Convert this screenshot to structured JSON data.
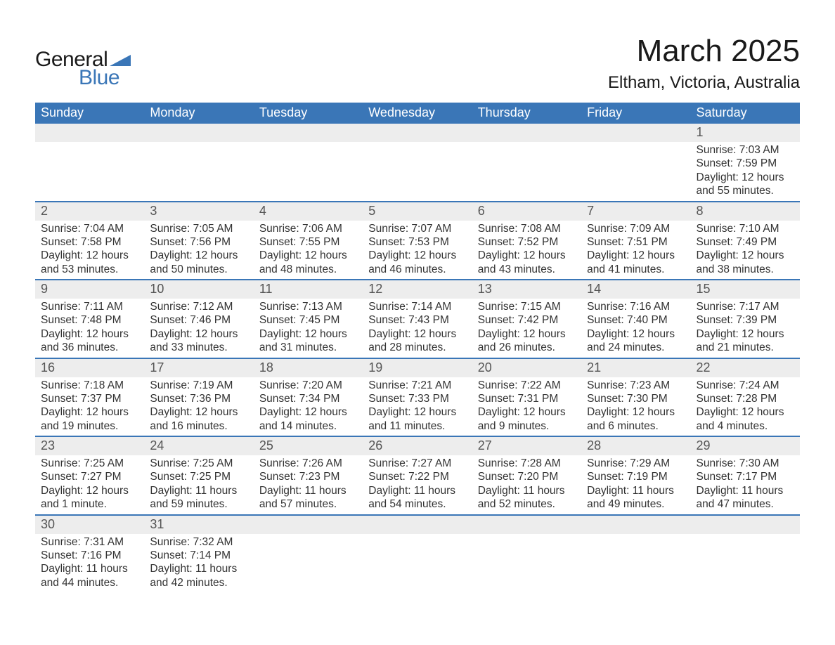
{
  "logo": {
    "text1": "General",
    "text2": "Blue",
    "triangle_color": "#3a76b7"
  },
  "title": "March 2025",
  "location": "Eltham, Victoria, Australia",
  "colors": {
    "header_bg": "#3a76b7",
    "header_text": "#ffffff",
    "daynum_bg": "#ededed",
    "row_divider": "#3a76b7",
    "body_bg": "#ffffff",
    "text": "#333333"
  },
  "weekdays": [
    "Sunday",
    "Monday",
    "Tuesday",
    "Wednesday",
    "Thursday",
    "Friday",
    "Saturday"
  ],
  "weeks": [
    [
      {
        "day": "",
        "sunrise": "",
        "sunset": "",
        "daylight": ""
      },
      {
        "day": "",
        "sunrise": "",
        "sunset": "",
        "daylight": ""
      },
      {
        "day": "",
        "sunrise": "",
        "sunset": "",
        "daylight": ""
      },
      {
        "day": "",
        "sunrise": "",
        "sunset": "",
        "daylight": ""
      },
      {
        "day": "",
        "sunrise": "",
        "sunset": "",
        "daylight": ""
      },
      {
        "day": "",
        "sunrise": "",
        "sunset": "",
        "daylight": ""
      },
      {
        "day": "1",
        "sunrise": "Sunrise: 7:03 AM",
        "sunset": "Sunset: 7:59 PM",
        "daylight": "Daylight: 12 hours and 55 minutes."
      }
    ],
    [
      {
        "day": "2",
        "sunrise": "Sunrise: 7:04 AM",
        "sunset": "Sunset: 7:58 PM",
        "daylight": "Daylight: 12 hours and 53 minutes."
      },
      {
        "day": "3",
        "sunrise": "Sunrise: 7:05 AM",
        "sunset": "Sunset: 7:56 PM",
        "daylight": "Daylight: 12 hours and 50 minutes."
      },
      {
        "day": "4",
        "sunrise": "Sunrise: 7:06 AM",
        "sunset": "Sunset: 7:55 PM",
        "daylight": "Daylight: 12 hours and 48 minutes."
      },
      {
        "day": "5",
        "sunrise": "Sunrise: 7:07 AM",
        "sunset": "Sunset: 7:53 PM",
        "daylight": "Daylight: 12 hours and 46 minutes."
      },
      {
        "day": "6",
        "sunrise": "Sunrise: 7:08 AM",
        "sunset": "Sunset: 7:52 PM",
        "daylight": "Daylight: 12 hours and 43 minutes."
      },
      {
        "day": "7",
        "sunrise": "Sunrise: 7:09 AM",
        "sunset": "Sunset: 7:51 PM",
        "daylight": "Daylight: 12 hours and 41 minutes."
      },
      {
        "day": "8",
        "sunrise": "Sunrise: 7:10 AM",
        "sunset": "Sunset: 7:49 PM",
        "daylight": "Daylight: 12 hours and 38 minutes."
      }
    ],
    [
      {
        "day": "9",
        "sunrise": "Sunrise: 7:11 AM",
        "sunset": "Sunset: 7:48 PM",
        "daylight": "Daylight: 12 hours and 36 minutes."
      },
      {
        "day": "10",
        "sunrise": "Sunrise: 7:12 AM",
        "sunset": "Sunset: 7:46 PM",
        "daylight": "Daylight: 12 hours and 33 minutes."
      },
      {
        "day": "11",
        "sunrise": "Sunrise: 7:13 AM",
        "sunset": "Sunset: 7:45 PM",
        "daylight": "Daylight: 12 hours and 31 minutes."
      },
      {
        "day": "12",
        "sunrise": "Sunrise: 7:14 AM",
        "sunset": "Sunset: 7:43 PM",
        "daylight": "Daylight: 12 hours and 28 minutes."
      },
      {
        "day": "13",
        "sunrise": "Sunrise: 7:15 AM",
        "sunset": "Sunset: 7:42 PM",
        "daylight": "Daylight: 12 hours and 26 minutes."
      },
      {
        "day": "14",
        "sunrise": "Sunrise: 7:16 AM",
        "sunset": "Sunset: 7:40 PM",
        "daylight": "Daylight: 12 hours and 24 minutes."
      },
      {
        "day": "15",
        "sunrise": "Sunrise: 7:17 AM",
        "sunset": "Sunset: 7:39 PM",
        "daylight": "Daylight: 12 hours and 21 minutes."
      }
    ],
    [
      {
        "day": "16",
        "sunrise": "Sunrise: 7:18 AM",
        "sunset": "Sunset: 7:37 PM",
        "daylight": "Daylight: 12 hours and 19 minutes."
      },
      {
        "day": "17",
        "sunrise": "Sunrise: 7:19 AM",
        "sunset": "Sunset: 7:36 PM",
        "daylight": "Daylight: 12 hours and 16 minutes."
      },
      {
        "day": "18",
        "sunrise": "Sunrise: 7:20 AM",
        "sunset": "Sunset: 7:34 PM",
        "daylight": "Daylight: 12 hours and 14 minutes."
      },
      {
        "day": "19",
        "sunrise": "Sunrise: 7:21 AM",
        "sunset": "Sunset: 7:33 PM",
        "daylight": "Daylight: 12 hours and 11 minutes."
      },
      {
        "day": "20",
        "sunrise": "Sunrise: 7:22 AM",
        "sunset": "Sunset: 7:31 PM",
        "daylight": "Daylight: 12 hours and 9 minutes."
      },
      {
        "day": "21",
        "sunrise": "Sunrise: 7:23 AM",
        "sunset": "Sunset: 7:30 PM",
        "daylight": "Daylight: 12 hours and 6 minutes."
      },
      {
        "day": "22",
        "sunrise": "Sunrise: 7:24 AM",
        "sunset": "Sunset: 7:28 PM",
        "daylight": "Daylight: 12 hours and 4 minutes."
      }
    ],
    [
      {
        "day": "23",
        "sunrise": "Sunrise: 7:25 AM",
        "sunset": "Sunset: 7:27 PM",
        "daylight": "Daylight: 12 hours and 1 minute."
      },
      {
        "day": "24",
        "sunrise": "Sunrise: 7:25 AM",
        "sunset": "Sunset: 7:25 PM",
        "daylight": "Daylight: 11 hours and 59 minutes."
      },
      {
        "day": "25",
        "sunrise": "Sunrise: 7:26 AM",
        "sunset": "Sunset: 7:23 PM",
        "daylight": "Daylight: 11 hours and 57 minutes."
      },
      {
        "day": "26",
        "sunrise": "Sunrise: 7:27 AM",
        "sunset": "Sunset: 7:22 PM",
        "daylight": "Daylight: 11 hours and 54 minutes."
      },
      {
        "day": "27",
        "sunrise": "Sunrise: 7:28 AM",
        "sunset": "Sunset: 7:20 PM",
        "daylight": "Daylight: 11 hours and 52 minutes."
      },
      {
        "day": "28",
        "sunrise": "Sunrise: 7:29 AM",
        "sunset": "Sunset: 7:19 PM",
        "daylight": "Daylight: 11 hours and 49 minutes."
      },
      {
        "day": "29",
        "sunrise": "Sunrise: 7:30 AM",
        "sunset": "Sunset: 7:17 PM",
        "daylight": "Daylight: 11 hours and 47 minutes."
      }
    ],
    [
      {
        "day": "30",
        "sunrise": "Sunrise: 7:31 AM",
        "sunset": "Sunset: 7:16 PM",
        "daylight": "Daylight: 11 hours and 44 minutes."
      },
      {
        "day": "31",
        "sunrise": "Sunrise: 7:32 AM",
        "sunset": "Sunset: 7:14 PM",
        "daylight": "Daylight: 11 hours and 42 minutes."
      },
      {
        "day": "",
        "sunrise": "",
        "sunset": "",
        "daylight": ""
      },
      {
        "day": "",
        "sunrise": "",
        "sunset": "",
        "daylight": ""
      },
      {
        "day": "",
        "sunrise": "",
        "sunset": "",
        "daylight": ""
      },
      {
        "day": "",
        "sunrise": "",
        "sunset": "",
        "daylight": ""
      },
      {
        "day": "",
        "sunrise": "",
        "sunset": "",
        "daylight": ""
      }
    ]
  ]
}
